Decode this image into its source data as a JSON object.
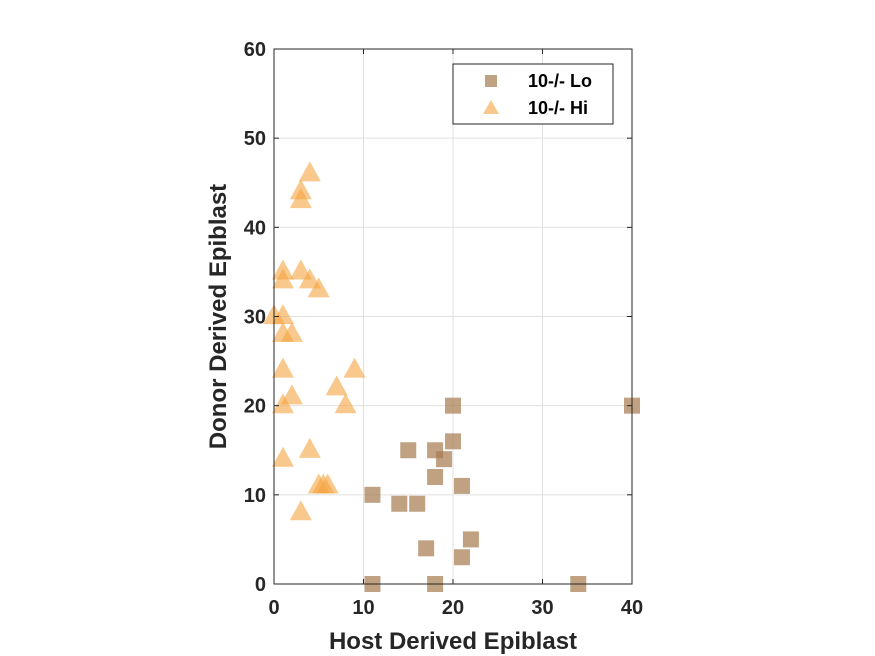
{
  "chart_data": {
    "type": "scatter",
    "title": "",
    "xlabel": "Host Derived Epiblast",
    "ylabel": "Donor Derived Epiblast",
    "xlim": [
      0,
      40
    ],
    "ylim": [
      0,
      60
    ],
    "xticks": [
      "0",
      "10",
      "20",
      "30",
      "40"
    ],
    "yticks": [
      "0",
      "10",
      "20",
      "30",
      "40",
      "50",
      "60"
    ],
    "grid": true,
    "legend_position": "top-right",
    "series": [
      {
        "name": "10-/- Lo",
        "marker": "square",
        "color": "#a57a4f",
        "points": [
          [
            11,
            0
          ],
          [
            11,
            10
          ],
          [
            14,
            9
          ],
          [
            15,
            15
          ],
          [
            16,
            9
          ],
          [
            17,
            4
          ],
          [
            18,
            0
          ],
          [
            18,
            12
          ],
          [
            18,
            15
          ],
          [
            19,
            14
          ],
          [
            20,
            20
          ],
          [
            20,
            16
          ],
          [
            21,
            11
          ],
          [
            21,
            3
          ],
          [
            22,
            5
          ],
          [
            34,
            0
          ],
          [
            40,
            20
          ]
        ]
      },
      {
        "name": "10-/- Hi",
        "marker": "triangle",
        "color": "#f5a340",
        "points": [
          [
            0,
            30
          ],
          [
            1,
            35
          ],
          [
            1,
            34
          ],
          [
            1,
            30
          ],
          [
            1,
            28
          ],
          [
            1,
            24
          ],
          [
            1,
            20
          ],
          [
            1,
            14
          ],
          [
            2,
            28
          ],
          [
            2,
            21
          ],
          [
            3,
            44
          ],
          [
            3,
            43
          ],
          [
            3,
            35
          ],
          [
            3,
            8
          ],
          [
            4,
            46
          ],
          [
            4,
            34
          ],
          [
            4,
            15
          ],
          [
            5,
            33
          ],
          [
            5,
            11
          ],
          [
            5.5,
            11
          ],
          [
            6,
            11
          ],
          [
            7,
            22
          ],
          [
            8,
            20
          ],
          [
            9,
            24
          ]
        ]
      }
    ]
  }
}
